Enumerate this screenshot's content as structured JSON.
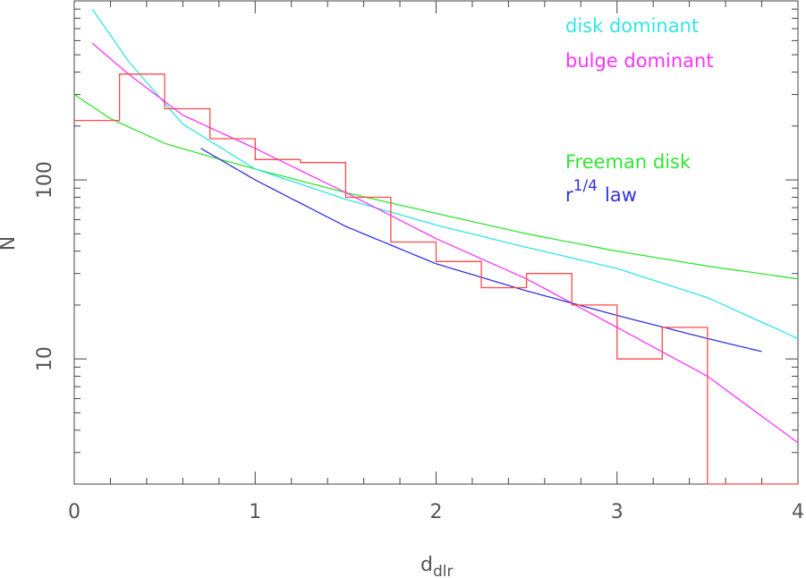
{
  "chart_data": {
    "type": "line",
    "xlabel": "d",
    "xlabel_sub": "dlr",
    "ylabel": "N",
    "xlim": [
      0,
      4
    ],
    "ylim": [
      2,
      1000
    ],
    "y_scale": "log",
    "x_ticks": [
      "0",
      "1",
      "2",
      "3",
      "4"
    ],
    "y_ticks": [
      "10",
      "100"
    ],
    "legend_position": "top-right",
    "histogram": {
      "color": "#ff4a4a",
      "edges": [
        0,
        0.25,
        0.5,
        0.75,
        1.0,
        1.25,
        1.5,
        1.75,
        2.0,
        2.25,
        2.5,
        2.75,
        3.0,
        3.25,
        3.5,
        4.0
      ],
      "values": [
        215,
        390,
        250,
        170,
        130,
        125,
        80,
        45,
        35,
        25,
        30,
        20,
        10,
        15,
        2
      ]
    },
    "series": [
      {
        "name": "disk dominant",
        "color": "#33e5e5",
        "x": [
          0.1,
          0.3,
          0.6,
          1.0,
          1.5,
          2.0,
          2.5,
          3.0,
          3.5,
          4.0
        ],
        "y": [
          900,
          460,
          205,
          115,
          78,
          56,
          42,
          32,
          22,
          13
        ]
      },
      {
        "name": "bulge dominant",
        "color": "#ff33ff",
        "x": [
          0.1,
          0.3,
          0.6,
          1.0,
          1.5,
          2.0,
          2.5,
          3.0,
          3.5,
          4.0
        ],
        "y": [
          580,
          390,
          230,
          150,
          85,
          47,
          28,
          15,
          8,
          3.4
        ]
      },
      {
        "name": "Freeman disk",
        "color": "#33e533",
        "x": [
          0.0,
          0.2,
          0.5,
          0.75,
          1.0,
          1.5,
          2.0,
          2.5,
          3.0,
          3.5,
          4.0
        ],
        "y": [
          300,
          220,
          160,
          135,
          115,
          85,
          65,
          50,
          40,
          33,
          28
        ]
      },
      {
        "name": "r^1/4 law",
        "name_base": "r",
        "name_sup": "1/4",
        "name_tail": "law",
        "color": "#3333dd",
        "x": [
          0.7,
          1.0,
          1.5,
          2.0,
          2.5,
          3.0,
          3.5,
          3.8
        ],
        "y": [
          150,
          100,
          55,
          34,
          24,
          17.5,
          13,
          11
        ]
      }
    ]
  }
}
